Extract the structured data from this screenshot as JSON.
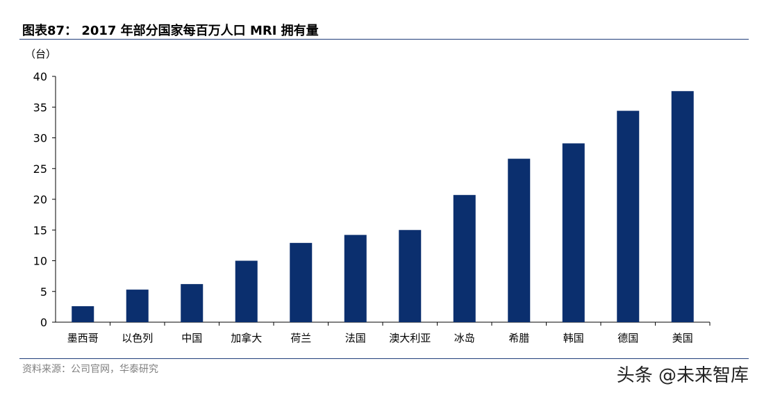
{
  "header": {
    "title": "图表87：  2017 年部分国家每百万人口 MRI 拥有量"
  },
  "footer": {
    "source": "资料来源：公司官网，华泰研究",
    "watermark": "头条 @未来智库"
  },
  "chart_data": {
    "type": "bar",
    "title": "2017 年部分国家每百万人口 MRI 拥有量",
    "ylabel": "（台）",
    "xlabel": "",
    "ylim": [
      0,
      40
    ],
    "yticks": [
      0,
      5,
      10,
      15,
      20,
      25,
      30,
      35,
      40
    ],
    "grid": false,
    "color": "#0b2f6e",
    "categories": [
      "墨西哥",
      "以色列",
      "中国",
      "加拿大",
      "荷兰",
      "法国",
      "澳大利亚",
      "冰岛",
      "希腊",
      "韩国",
      "德国",
      "美国"
    ],
    "values": [
      2.6,
      5.3,
      6.2,
      10.0,
      12.9,
      14.2,
      15.0,
      20.7,
      26.6,
      29.1,
      34.4,
      37.6
    ]
  }
}
